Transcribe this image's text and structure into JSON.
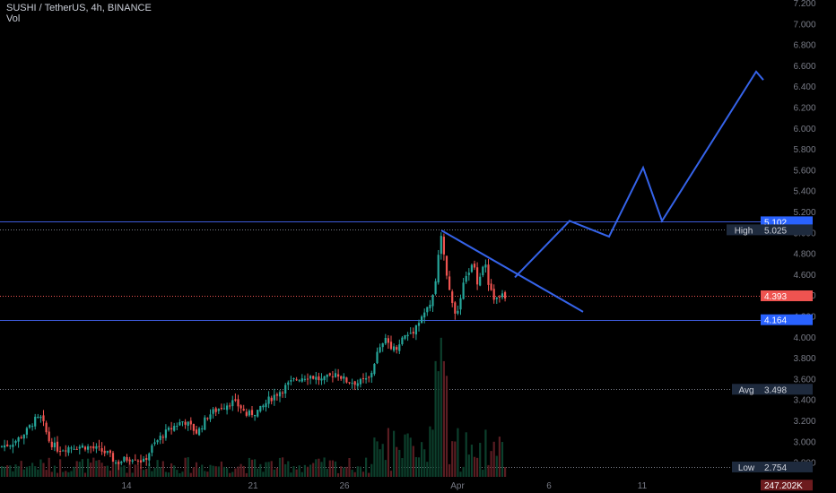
{
  "header": {
    "title": "SUSHI / TetherUS, 4h, BINANCE",
    "indicator": "Vol"
  },
  "chart_data": {
    "type": "candlestick",
    "symbol": "SUSHI / TetherUS",
    "interval": "4h",
    "exchange": "BINANCE",
    "y_axis": {
      "ticks": [
        "7.200",
        "7.000",
        "6.800",
        "6.600",
        "6.400",
        "6.200",
        "6.000",
        "5.800",
        "5.600",
        "5.400",
        "5.200",
        "5.000",
        "4.800",
        "4.600",
        "4.400",
        "4.200",
        "4.000",
        "3.800",
        "3.600",
        "3.400",
        "3.200",
        "3.000",
        "2.800"
      ],
      "range": [
        2.7,
        7.2
      ]
    },
    "x_axis": {
      "ticks": [
        "14",
        "21",
        "26",
        "Apr",
        "6",
        "11"
      ]
    },
    "price_labels": [
      {
        "name": "resistance",
        "value": "5.102",
        "style": "blue"
      },
      {
        "name": "high",
        "label": "High",
        "value": "5.025",
        "style": "dark"
      },
      {
        "name": "last",
        "value": "4.393",
        "style": "red"
      },
      {
        "name": "support",
        "value": "4.164",
        "style": "blue"
      },
      {
        "name": "avg",
        "label": "Avg",
        "value": "3.498",
        "style": "dark"
      },
      {
        "name": "low",
        "label": "Low",
        "value": "2.754",
        "style": "dark"
      },
      {
        "name": "volume",
        "value": "247.202K",
        "style": "darkred"
      }
    ],
    "horizontal_lines": [
      {
        "value": 5.102,
        "style": "solid",
        "color": "#3d5bd9"
      },
      {
        "value": 5.025,
        "style": "dotted",
        "color": "#787b86"
      },
      {
        "value": 4.393,
        "style": "dotted",
        "color": "#ef5350"
      },
      {
        "value": 4.164,
        "style": "solid",
        "color": "#3d5bd9"
      },
      {
        "value": 3.498,
        "style": "dotted",
        "color": "#787b86"
      },
      {
        "value": 2.754,
        "style": "dotted",
        "color": "#787b86"
      }
    ],
    "trendline": [
      {
        "t": 492,
        "price": 5.02
      },
      {
        "t": 650,
        "price": 4.24
      }
    ],
    "projection_path": [
      {
        "t": 574,
        "price": 4.57
      },
      {
        "t": 635,
        "price": 5.11
      },
      {
        "t": 679,
        "price": 4.96
      },
      {
        "t": 717,
        "price": 5.62
      },
      {
        "t": 738,
        "price": 5.11
      },
      {
        "t": 843,
        "price": 6.54
      },
      {
        "t": 851,
        "price": 6.46
      }
    ],
    "candle_keypoints": [
      {
        "t": 0,
        "price": 2.95
      },
      {
        "t": 10,
        "price": 2.97
      },
      {
        "t": 20,
        "price": 3.02
      },
      {
        "t": 30,
        "price": 3.1
      },
      {
        "t": 38,
        "price": 3.2
      },
      {
        "t": 46,
        "price": 3.22
      },
      {
        "t": 55,
        "price": 3.0
      },
      {
        "t": 65,
        "price": 2.92
      },
      {
        "t": 80,
        "price": 2.95
      },
      {
        "t": 95,
        "price": 2.95
      },
      {
        "t": 110,
        "price": 2.92
      },
      {
        "t": 120,
        "price": 2.88
      },
      {
        "t": 130,
        "price": 2.79
      },
      {
        "t": 140,
        "price": 2.83
      },
      {
        "t": 150,
        "price": 2.85
      },
      {
        "t": 160,
        "price": 2.8
      },
      {
        "t": 170,
        "price": 2.95
      },
      {
        "t": 180,
        "price": 3.05
      },
      {
        "t": 195,
        "price": 3.15
      },
      {
        "t": 205,
        "price": 3.2
      },
      {
        "t": 220,
        "price": 3.08
      },
      {
        "t": 232,
        "price": 3.25
      },
      {
        "t": 245,
        "price": 3.32
      },
      {
        "t": 258,
        "price": 3.38
      },
      {
        "t": 268,
        "price": 3.33
      },
      {
        "t": 275,
        "price": 3.25
      },
      {
        "t": 290,
        "price": 3.3
      },
      {
        "t": 300,
        "price": 3.4
      },
      {
        "t": 315,
        "price": 3.5
      },
      {
        "t": 330,
        "price": 3.6
      },
      {
        "t": 345,
        "price": 3.63
      },
      {
        "t": 360,
        "price": 3.58
      },
      {
        "t": 375,
        "price": 3.66
      },
      {
        "t": 385,
        "price": 3.58
      },
      {
        "t": 400,
        "price": 3.56
      },
      {
        "t": 412,
        "price": 3.6
      },
      {
        "t": 420,
        "price": 3.83
      },
      {
        "t": 430,
        "price": 3.97
      },
      {
        "t": 440,
        "price": 3.88
      },
      {
        "t": 450,
        "price": 4.0
      },
      {
        "t": 460,
        "price": 4.05
      },
      {
        "t": 470,
        "price": 4.2
      },
      {
        "t": 480,
        "price": 4.3
      },
      {
        "t": 487,
        "price": 4.6
      },
      {
        "t": 491,
        "price": 5.02
      },
      {
        "t": 496,
        "price": 4.7
      },
      {
        "t": 500,
        "price": 4.45
      },
      {
        "t": 505,
        "price": 4.3
      },
      {
        "t": 510,
        "price": 4.2
      },
      {
        "t": 515,
        "price": 4.45
      },
      {
        "t": 522,
        "price": 4.62
      },
      {
        "t": 528,
        "price": 4.7
      },
      {
        "t": 533,
        "price": 4.5
      },
      {
        "t": 540,
        "price": 4.75
      },
      {
        "t": 546,
        "price": 4.45
      },
      {
        "t": 552,
        "price": 4.35
      },
      {
        "t": 558,
        "price": 4.4
      },
      {
        "t": 566,
        "price": 4.39
      }
    ],
    "colors": {
      "up": "#26a69a",
      "down": "#ef5350",
      "vol_up": "#0c3f2c",
      "vol_down": "#5a1d22",
      "axis_text": "#787b86",
      "title_text": "#c9cdd6",
      "drawing": "#3563e9",
      "level_line": "#3d5bd9"
    }
  }
}
